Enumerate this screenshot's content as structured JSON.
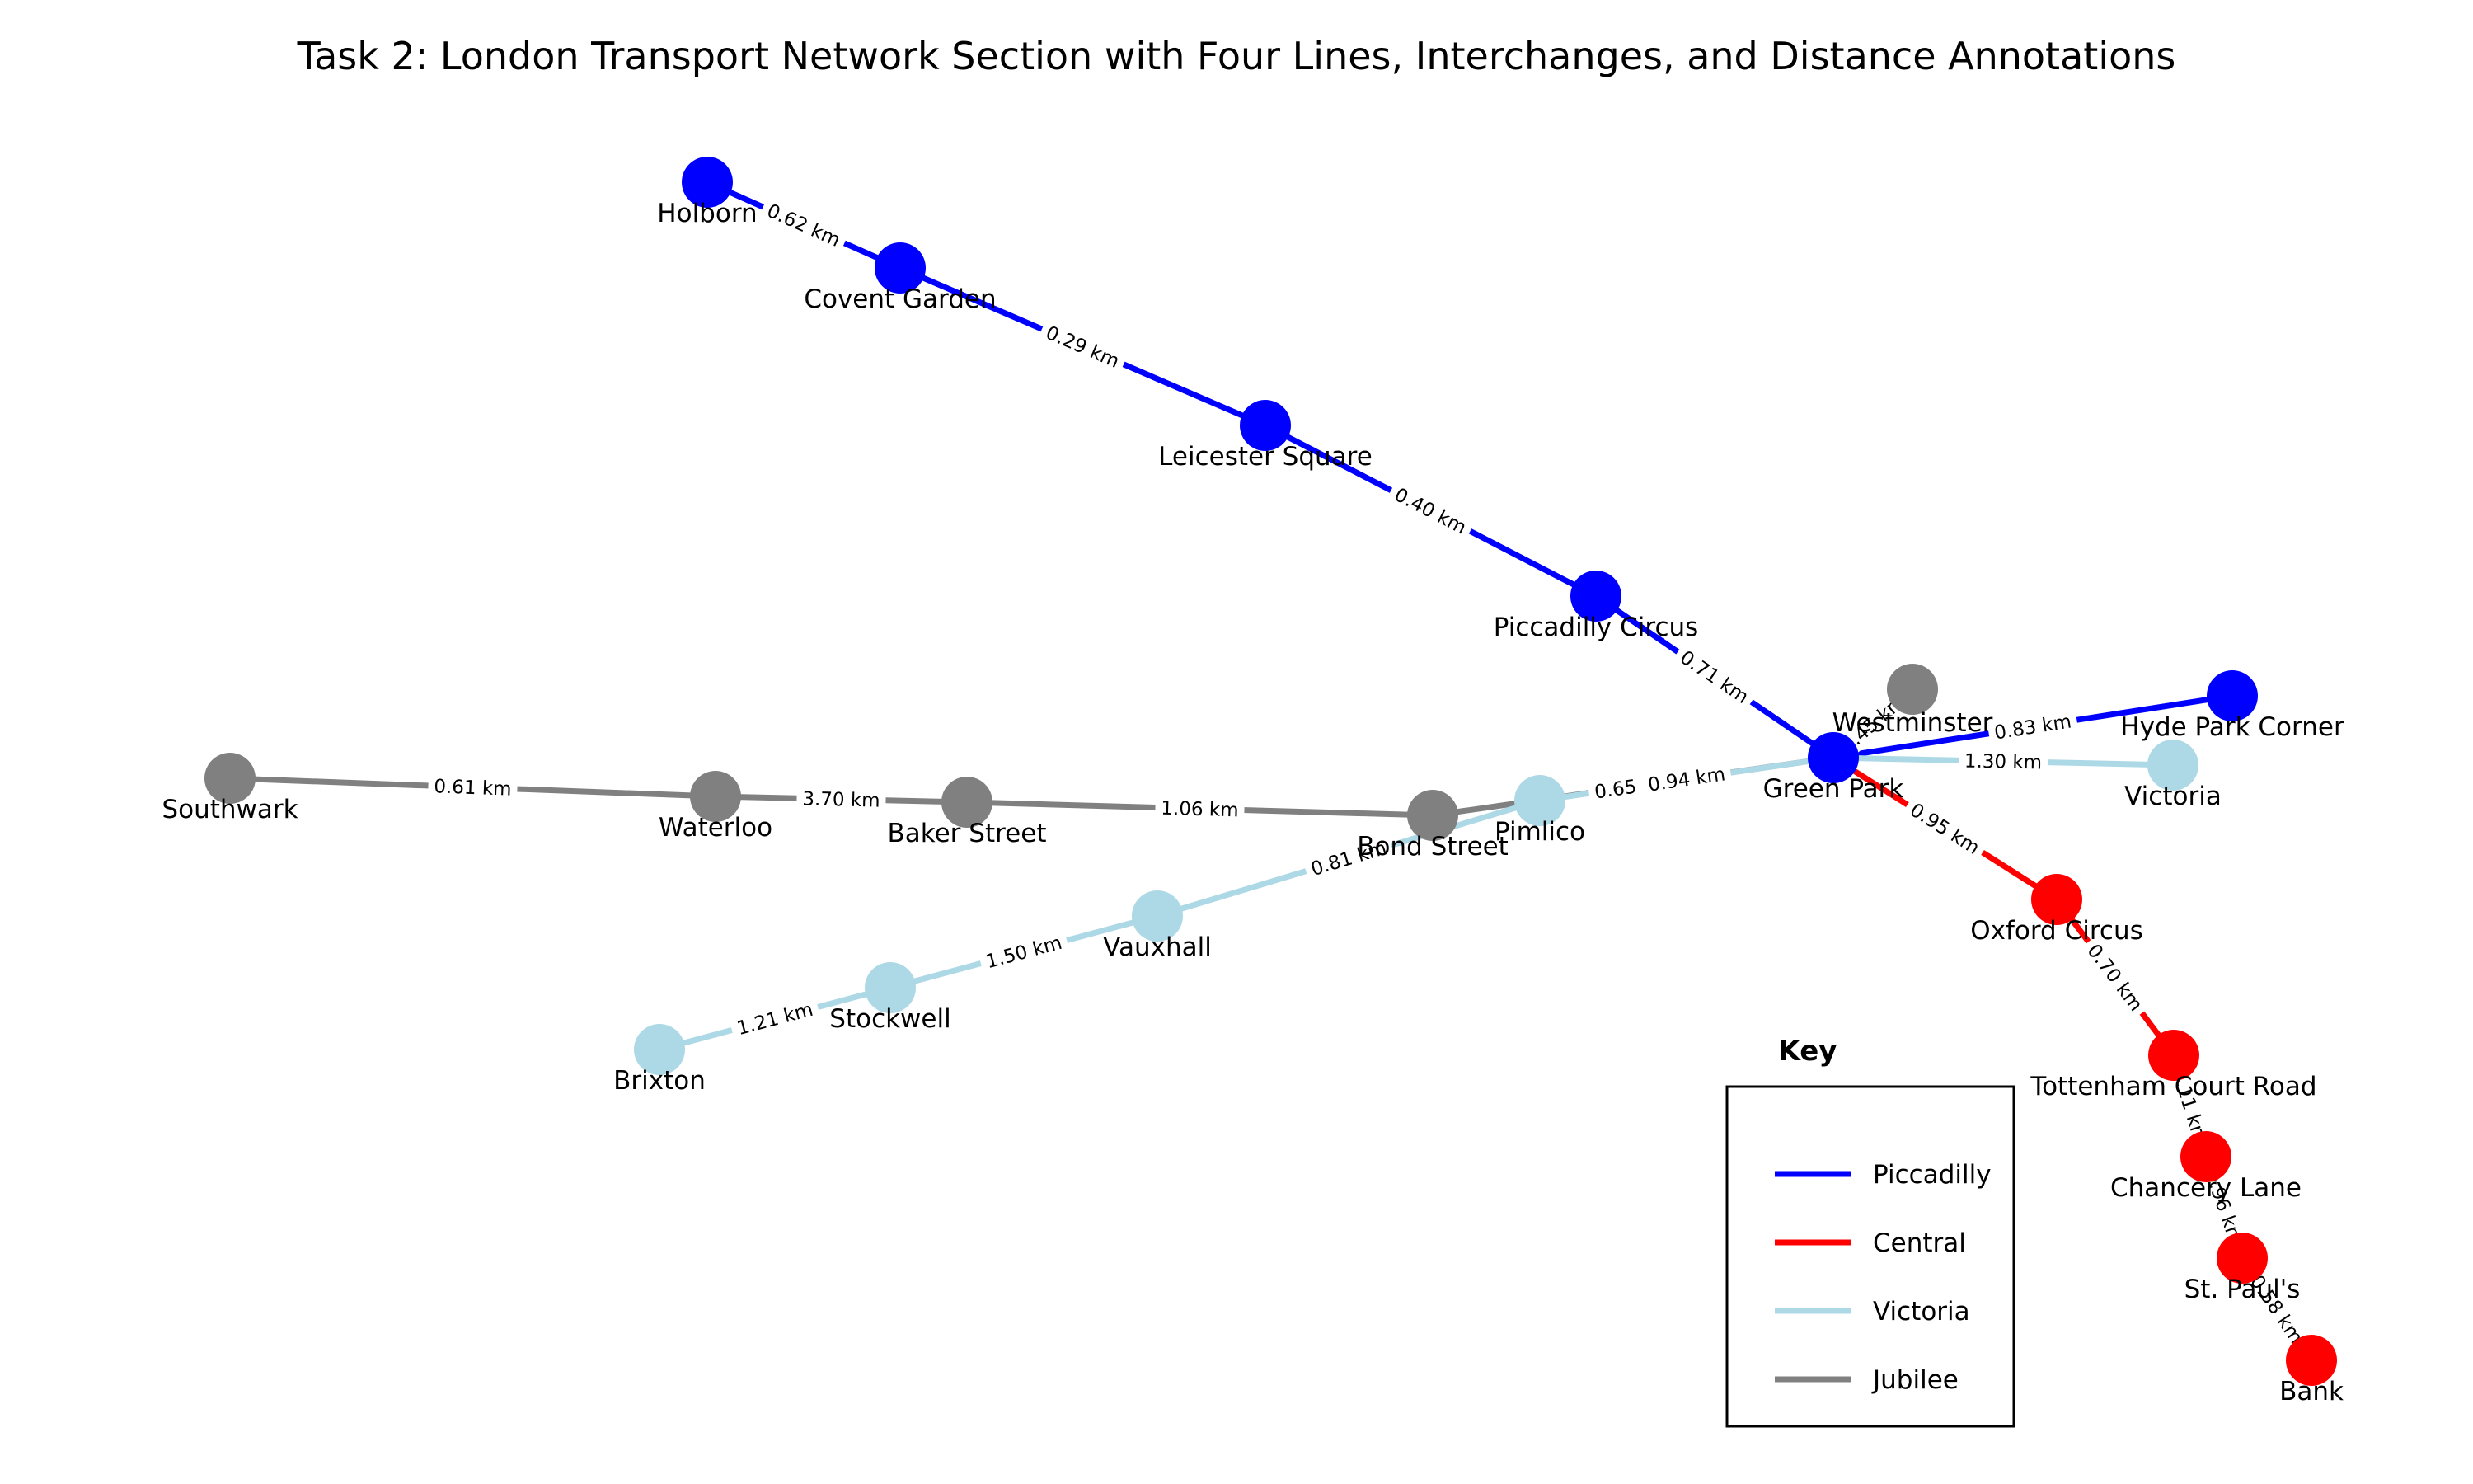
{
  "title": "Task 2: London Transport Network Section with Four Lines, Interchanges, and Distance Annotations",
  "key": {
    "title": "Key",
    "items": [
      {
        "line": "Piccadilly",
        "label": "Piccadilly"
      },
      {
        "line": "Central",
        "label": "Central"
      },
      {
        "line": "Victoria",
        "label": "Victoria"
      },
      {
        "line": "Jubilee",
        "label": "Jubilee"
      }
    ]
  },
  "lines": {
    "Piccadilly": {
      "color": "#0000ff"
    },
    "Central": {
      "color": "#ff0000"
    },
    "Victoria": {
      "color": "#add8e6"
    },
    "Jubilee": {
      "color": "#808080"
    }
  },
  "stations": [
    {
      "id": "holborn",
      "name": "Holborn",
      "line": "Piccadilly"
    },
    {
      "id": "covent_garden",
      "name": "Covent Garden",
      "line": "Piccadilly"
    },
    {
      "id": "leicester_square",
      "name": "Leicester Square",
      "line": "Piccadilly"
    },
    {
      "id": "piccadilly_circus",
      "name": "Piccadilly Circus",
      "line": "Piccadilly"
    },
    {
      "id": "green_park",
      "name": "Green Park",
      "line": "Piccadilly"
    },
    {
      "id": "hyde_park_corner",
      "name": "Hyde Park Corner",
      "line": "Piccadilly"
    },
    {
      "id": "westminster",
      "name": "Westminster",
      "line": "Jubilee"
    },
    {
      "id": "victoria",
      "name": "Victoria",
      "line": "Victoria"
    },
    {
      "id": "oxford_circus",
      "name": "Oxford Circus",
      "line": "Central"
    },
    {
      "id": "tottenham_court_road",
      "name": "Tottenham Court Road",
      "line": "Central"
    },
    {
      "id": "chancery_lane",
      "name": "Chancery Lane",
      "line": "Central"
    },
    {
      "id": "st_pauls",
      "name": "St. Paul's",
      "line": "Central"
    },
    {
      "id": "bank",
      "name": "Bank",
      "line": "Central"
    },
    {
      "id": "southwark",
      "name": "Southwark",
      "line": "Jubilee"
    },
    {
      "id": "waterloo",
      "name": "Waterloo",
      "line": "Jubilee"
    },
    {
      "id": "baker_street",
      "name": "Baker Street",
      "line": "Jubilee"
    },
    {
      "id": "bond_street",
      "name": "Bond Street",
      "line": "Jubilee"
    },
    {
      "id": "pimlico",
      "name": "Pimlico",
      "line": "Victoria"
    },
    {
      "id": "vauxhall",
      "name": "Vauxhall",
      "line": "Victoria"
    },
    {
      "id": "stockwell",
      "name": "Stockwell",
      "line": "Victoria"
    },
    {
      "id": "brixton",
      "name": "Brixton",
      "line": "Victoria"
    }
  ],
  "connections": [
    {
      "from": "holborn",
      "to": "covent_garden",
      "line": "Piccadilly",
      "distance": "0.62 km"
    },
    {
      "from": "covent_garden",
      "to": "leicester_square",
      "line": "Piccadilly",
      "distance": "0.29 km"
    },
    {
      "from": "leicester_square",
      "to": "piccadilly_circus",
      "line": "Piccadilly",
      "distance": "0.40 km"
    },
    {
      "from": "piccadilly_circus",
      "to": "green_park",
      "line": "Piccadilly",
      "distance": "0.71 km"
    },
    {
      "from": "green_park",
      "to": "hyde_park_corner",
      "line": "Piccadilly",
      "distance": "0.83 km"
    },
    {
      "from": "green_park",
      "to": "victoria",
      "line": "Victoria",
      "distance": "1.30 km"
    },
    {
      "from": "green_park",
      "to": "oxford_circus",
      "line": "Central",
      "distance": "0.95 km"
    },
    {
      "from": "oxford_circus",
      "to": "tottenham_court_road",
      "line": "Central",
      "distance": "0.70 km"
    },
    {
      "from": "tottenham_court_road",
      "to": "chancery_lane",
      "line": "Central",
      "distance": "1.11 km"
    },
    {
      "from": "chancery_lane",
      "to": "st_pauls",
      "line": "Central",
      "distance": "0.96 km"
    },
    {
      "from": "st_pauls",
      "to": "bank",
      "line": "Central",
      "distance": "0.58 km"
    },
    {
      "from": "southwark",
      "to": "waterloo",
      "line": "Jubilee",
      "distance": "0.61 km"
    },
    {
      "from": "waterloo",
      "to": "baker_street",
      "line": "Jubilee",
      "distance": "3.70 km"
    },
    {
      "from": "baker_street",
      "to": "bond_street",
      "line": "Jubilee",
      "distance": "1.06 km"
    },
    {
      "from": "bond_street",
      "to": "green_park",
      "line": "Jubilee",
      "distance": "0.65 km"
    },
    {
      "from": "green_park",
      "to": "westminster",
      "line": "Jubilee",
      "distance": "1.45 km"
    },
    {
      "from": "pimlico",
      "to": "green_park",
      "line": "Victoria",
      "distance": "0.94 km"
    },
    {
      "from": "vauxhall",
      "to": "pimlico",
      "line": "Victoria",
      "distance": "0.81 km"
    },
    {
      "from": "stockwell",
      "to": "vauxhall",
      "line": "Victoria",
      "distance": "1.50 km"
    },
    {
      "from": "brixton",
      "to": "stockwell",
      "line": "Victoria",
      "distance": "1.21 km"
    }
  ]
}
